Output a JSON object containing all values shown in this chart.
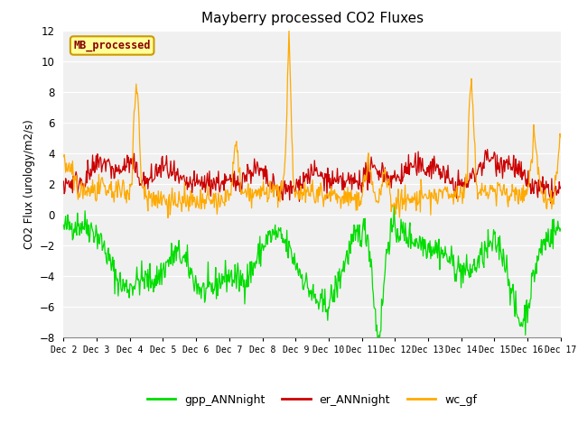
{
  "title": "Mayberry processed CO2 Fluxes",
  "ylabel": "CO2 Flux (urology/m2/s)",
  "ylim": [
    -8,
    12
  ],
  "yticks": [
    -8,
    -6,
    -4,
    -2,
    0,
    2,
    4,
    6,
    8,
    10,
    12
  ],
  "xlabel_ticks": [
    "Dec 2",
    "Dec 3",
    "Dec 4",
    "Dec 5",
    "Dec 6",
    "Dec 7",
    "Dec 8",
    "Dec 9",
    "Dec 10",
    "Dec 11",
    "Dec 12",
    "Dec 13",
    "Dec 14",
    "Dec 15",
    "Dec 16",
    "Dec 17"
  ],
  "color_gpp": "#00dd00",
  "color_er": "#cc0000",
  "color_wc": "#ffaa00",
  "legend_label_gpp": "gpp_ANNnight",
  "legend_label_er": "er_ANNnight",
  "legend_label_wc": "wc_gf",
  "inset_label": "MB_processed",
  "bg_color": "#e8e8e8",
  "plot_bg": "#f0f0f0",
  "n_points": 720,
  "seed": 42
}
